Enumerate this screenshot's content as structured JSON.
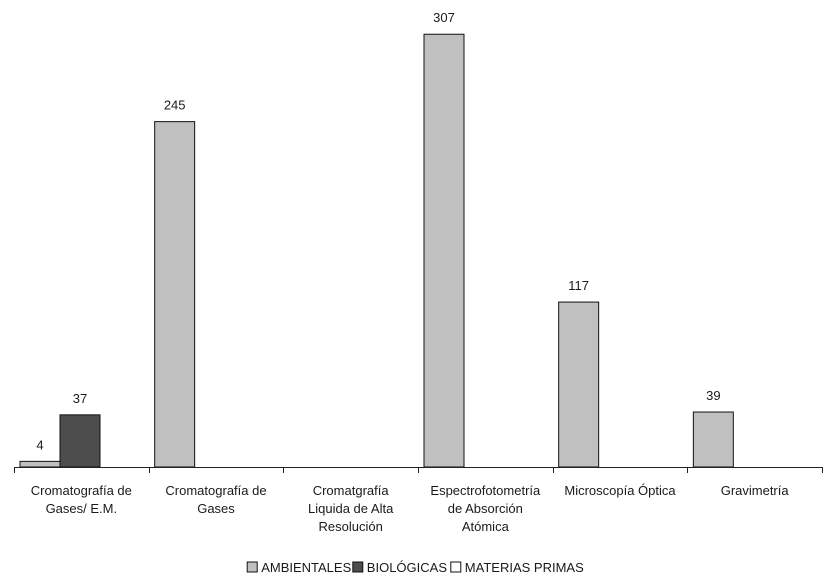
{
  "chart_data": {
    "type": "bar",
    "categories": [
      [
        "Cromatografía de",
        "Gases/ E.M."
      ],
      [
        "Cromatografía de",
        "Gases"
      ],
      [
        "Cromatgrafía",
        "Liquida de Alta",
        "Resolución"
      ],
      [
        "Espectrofotometría",
        "de Absorción",
        "Atómica"
      ],
      [
        "Microscopía Óptica"
      ],
      [
        "Gravimetría"
      ]
    ],
    "series": [
      {
        "name": "AMBIENTALES",
        "color": "#c0c0c0",
        "values": [
          4,
          245,
          0,
          307,
          117,
          39
        ]
      },
      {
        "name": "BIOLÓGICAS",
        "color": "#4d4d4d",
        "values": [
          37,
          0,
          0,
          0,
          0,
          0
        ]
      },
      {
        "name": "MATERIAS PRIMAS",
        "color": "#ffffff",
        "values": [
          0,
          0,
          0,
          0,
          0,
          0
        ]
      }
    ],
    "data_labels": [
      {
        "category": 0,
        "series": 0,
        "text": "4"
      },
      {
        "category": 0,
        "series": 1,
        "text": "37"
      },
      {
        "category": 1,
        "series": 0,
        "text": "245"
      },
      {
        "category": 3,
        "series": 0,
        "text": "307"
      },
      {
        "category": 4,
        "series": 0,
        "text": "117"
      },
      {
        "category": 5,
        "series": 0,
        "text": "39"
      }
    ],
    "ylim": [
      0,
      310
    ],
    "grid": false,
    "legend_position": "bottom"
  }
}
